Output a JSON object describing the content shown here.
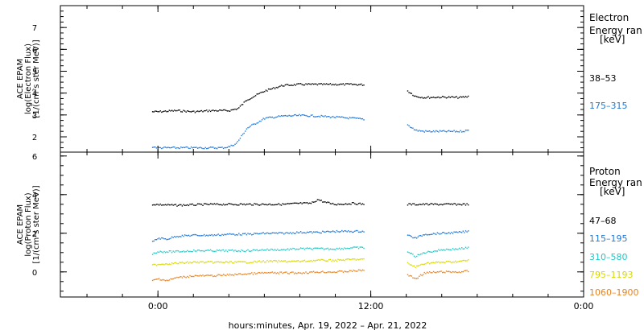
{
  "chart_data": [
    {
      "type": "scatter",
      "panel": "electron",
      "ylabel_lines": [
        "ACE EPAM",
        "log(Electron Flux)",
        "[1/(cm²s ster MeV)]"
      ],
      "ylim": [
        1.3,
        8
      ],
      "yticks": [
        2,
        3,
        4,
        5,
        6,
        7
      ],
      "legend_title": [
        "Electron",
        "Energy ran",
        "[keV]"
      ],
      "series": [
        {
          "name": "38–53",
          "color": "#000000",
          "segments": [
            {
              "x": [
                -0.33,
                0.0,
                1.0,
                2.0,
                3.0,
                3.6,
                4.0,
                4.5,
                5.0,
                6.0,
                7.0,
                8.0,
                9.0,
                10.0,
                11.0,
                11.65
              ],
              "y": [
                3.15,
                3.15,
                3.2,
                3.15,
                3.2,
                3.2,
                3.2,
                3.3,
                3.7,
                4.1,
                4.35,
                4.4,
                4.4,
                4.4,
                4.4,
                4.38
              ]
            },
            {
              "x": [
                14.05,
                14.5,
                15.0,
                16.0,
                17.0,
                17.5
              ],
              "y": [
                4.1,
                3.85,
                3.8,
                3.82,
                3.8,
                3.85
              ]
            }
          ]
        },
        {
          "name": "175–315",
          "color": "#1e78d8",
          "segments": [
            {
              "x": [
                -0.33,
                0.0,
                1.0,
                2.0,
                3.0,
                3.6,
                4.0,
                4.4,
                5.0,
                6.0,
                7.0,
                8.0,
                9.0,
                10.0,
                11.0,
                11.65
              ],
              "y": [
                1.55,
                1.5,
                1.5,
                1.5,
                1.5,
                1.5,
                1.55,
                1.7,
                2.4,
                2.85,
                2.95,
                2.98,
                2.95,
                2.9,
                2.85,
                2.8
              ]
            },
            {
              "x": [
                14.05,
                14.5,
                15.0,
                16.0,
                17.0,
                17.5
              ],
              "y": [
                2.55,
                2.3,
                2.25,
                2.25,
                2.25,
                2.3
              ]
            }
          ]
        }
      ]
    },
    {
      "type": "scatter",
      "panel": "proton",
      "ylabel_lines": [
        "ACE EPAM",
        "log(Proton Flux)",
        "[1/(cm²s ster MeV)]"
      ],
      "ylim": [
        -1.3,
        6.2
      ],
      "yticks": [
        0,
        2,
        4,
        6
      ],
      "legend_title": [
        "Proton",
        "Energy ran",
        "[keV]"
      ],
      "series": [
        {
          "name": "47–68",
          "color": "#000000",
          "segments": [
            {
              "x": [
                -0.33,
                1.0,
                3.0,
                5.0,
                7.0,
                8.0,
                8.6,
                9.0,
                9.4,
                10.0,
                11.0,
                11.65
              ],
              "y": [
                3.5,
                3.45,
                3.5,
                3.5,
                3.5,
                3.55,
                3.55,
                3.75,
                3.6,
                3.5,
                3.55,
                3.5
              ]
            },
            {
              "x": [
                14.05,
                15.0,
                16.0,
                17.5
              ],
              "y": [
                3.5,
                3.5,
                3.5,
                3.5
              ]
            }
          ]
        },
        {
          "name": "115–195",
          "color": "#1e78d8",
          "segments": [
            {
              "x": [
                -0.33,
                0.0,
                0.5,
                1.0,
                2.0,
                3.0,
                4.0,
                5.0,
                6.0,
                7.0,
                8.0,
                9.0,
                10.0,
                11.0,
                11.65
              ],
              "y": [
                1.55,
                1.75,
                1.7,
                1.85,
                1.9,
                1.9,
                1.95,
                1.95,
                2.0,
                2.0,
                2.05,
                2.05,
                2.1,
                2.1,
                2.1
              ]
            },
            {
              "x": [
                14.05,
                14.5,
                15.0,
                16.0,
                17.0,
                17.5
              ],
              "y": [
                1.9,
                1.75,
                1.95,
                2.0,
                2.05,
                2.1
              ]
            }
          ]
        },
        {
          "name": "310–580",
          "color": "#20c8c8",
          "segments": [
            {
              "x": [
                -0.33,
                0.0,
                1.0,
                2.0,
                3.0,
                4.0,
                5.0,
                6.0,
                7.0,
                8.0,
                9.0,
                10.0,
                11.0,
                11.65
              ],
              "y": [
                0.95,
                1.05,
                1.05,
                1.1,
                1.1,
                1.1,
                1.1,
                1.15,
                1.15,
                1.2,
                1.2,
                1.2,
                1.25,
                1.25
              ]
            },
            {
              "x": [
                14.05,
                14.5,
                15.0,
                16.0,
                17.0,
                17.5
              ],
              "y": [
                1.05,
                0.8,
                1.0,
                1.15,
                1.2,
                1.25
              ]
            }
          ]
        },
        {
          "name": "795–1193",
          "color": "#d8d800",
          "segments": [
            {
              "x": [
                -0.33,
                0.0,
                1.0,
                2.0,
                3.0,
                4.0,
                5.0,
                6.0,
                7.0,
                8.0,
                9.0,
                10.0,
                11.0,
                11.65
              ],
              "y": [
                0.35,
                0.4,
                0.45,
                0.5,
                0.5,
                0.5,
                0.5,
                0.55,
                0.55,
                0.55,
                0.6,
                0.6,
                0.65,
                0.65
              ]
            },
            {
              "x": [
                14.05,
                14.5,
                15.0,
                16.0,
                17.0,
                17.5
              ],
              "y": [
                0.45,
                0.25,
                0.45,
                0.5,
                0.55,
                0.6
              ]
            }
          ]
        },
        {
          "name": "1060–1900",
          "color": "#e8821e",
          "segments": [
            {
              "x": [
                -0.33,
                0.0,
                0.5,
                1.0,
                2.0,
                3.0,
                4.0,
                5.0,
                6.0,
                7.0,
                8.0,
                9.0,
                10.0,
                11.0,
                11.65
              ],
              "y": [
                -0.45,
                -0.35,
                -0.45,
                -0.3,
                -0.2,
                -0.2,
                -0.15,
                -0.1,
                -0.05,
                -0.05,
                -0.05,
                0.0,
                0.0,
                0.05,
                0.1
              ]
            },
            {
              "x": [
                14.05,
                14.5,
                15.0,
                16.0,
                17.0,
                17.5
              ],
              "y": [
                -0.15,
                -0.35,
                -0.05,
                0.0,
                0.0,
                0.05
              ]
            }
          ]
        }
      ]
    }
  ],
  "x_axis": {
    "units": "hours from 00:00 Apr. 20, 2022",
    "xlim": [
      -5.5,
      24
    ],
    "ticks": [
      0,
      12,
      24
    ],
    "tick_labels": [
      "0:00",
      "12:00",
      "0:00"
    ],
    "label": "hours:minutes, Apr. 19, 2022 – Apr. 21, 2022"
  }
}
